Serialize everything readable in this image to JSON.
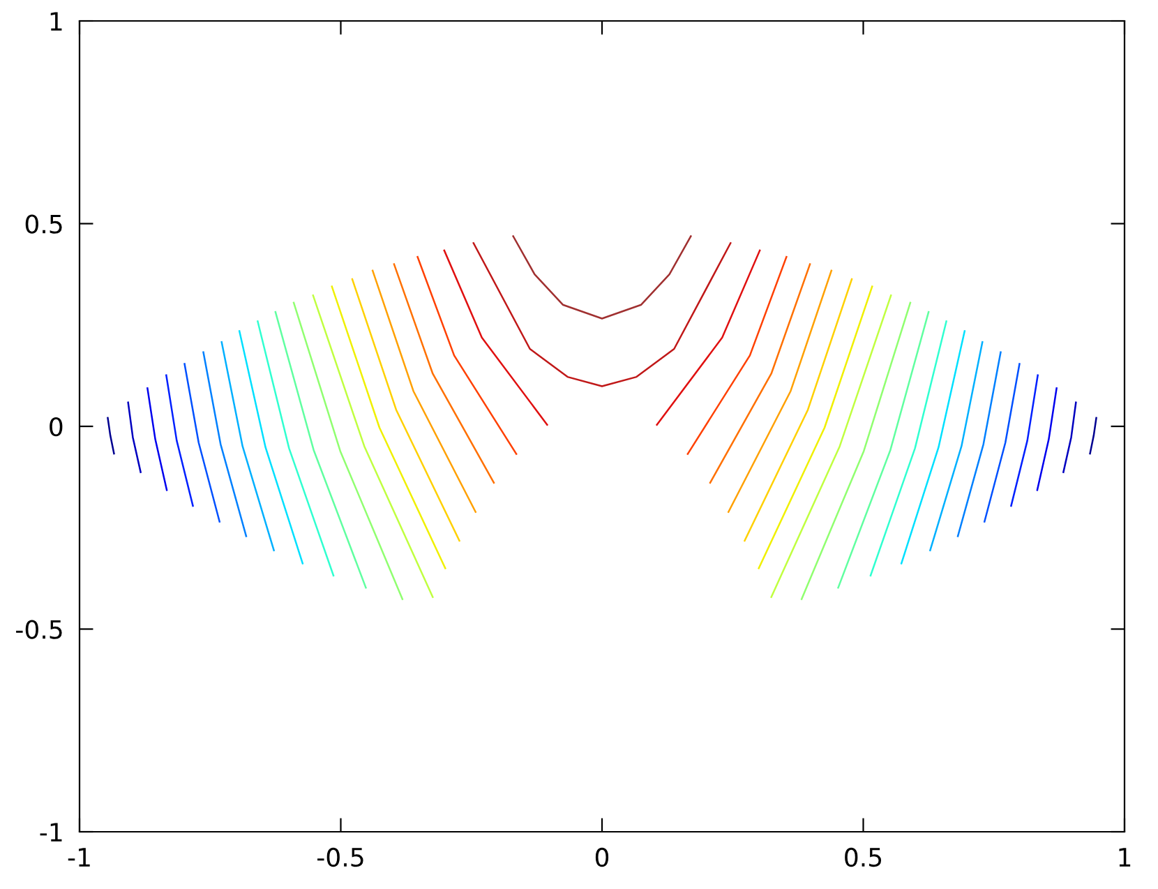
{
  "chart_data": {
    "type": "line",
    "xlim": [
      -1,
      1
    ],
    "ylim": [
      -1,
      1
    ],
    "xticks": [
      -1,
      -0.5,
      0,
      0.5,
      1
    ],
    "yticks": [
      -1,
      -0.5,
      0,
      0.5,
      1
    ],
    "grid": false,
    "marker": "none",
    "line_style": "solid",
    "series": [
      {
        "color": "#000090",
        "x": [
          -0.946,
          -0.941,
          -0.934
        ],
        "values": [
          0.021,
          -0.023,
          -0.067
        ]
      },
      {
        "color": "#000090",
        "x": [
          0.946,
          0.941,
          0.934
        ],
        "values": [
          0.021,
          -0.023,
          -0.067
        ]
      },
      {
        "color": "#0000c0",
        "x": [
          -0.907,
          -0.898,
          -0.883
        ],
        "values": [
          0.059,
          -0.027,
          -0.113
        ]
      },
      {
        "color": "#0000c0",
        "x": [
          0.907,
          0.898,
          0.883
        ],
        "values": [
          0.059,
          -0.027,
          -0.113
        ]
      },
      {
        "color": "#0000ee",
        "x": [
          -0.87,
          -0.855,
          -0.833
        ],
        "values": [
          0.094,
          -0.032,
          -0.157
        ]
      },
      {
        "color": "#0000ee",
        "x": [
          0.87,
          0.855,
          0.833
        ],
        "values": [
          0.094,
          -0.032,
          -0.157
        ]
      },
      {
        "color": "#0020ff",
        "x": [
          -0.834,
          -0.814,
          -0.783
        ],
        "values": [
          0.126,
          -0.035,
          -0.196
        ]
      },
      {
        "color": "#0020ff",
        "x": [
          0.834,
          0.814,
          0.783
        ],
        "values": [
          0.126,
          -0.035,
          -0.196
        ]
      },
      {
        "color": "#0050ff",
        "x": [
          -0.799,
          -0.772,
          -0.732
        ],
        "values": [
          0.154,
          -0.04,
          -0.235
        ]
      },
      {
        "color": "#0050ff",
        "x": [
          0.799,
          0.772,
          0.732
        ],
        "values": [
          0.154,
          -0.04,
          -0.235
        ]
      },
      {
        "color": "#0080ff",
        "x": [
          -0.763,
          -0.73,
          -0.681
        ],
        "values": [
          0.183,
          -0.044,
          -0.271
        ]
      },
      {
        "color": "#0080ff",
        "x": [
          0.763,
          0.73,
          0.681
        ],
        "values": [
          0.183,
          -0.044,
          -0.271
        ]
      },
      {
        "color": "#00b0ff",
        "x": [
          -0.728,
          -0.688,
          -0.628
        ],
        "values": [
          0.208,
          -0.049,
          -0.306
        ]
      },
      {
        "color": "#00b0ff",
        "x": [
          0.728,
          0.688,
          0.628
        ],
        "values": [
          0.208,
          -0.049,
          -0.306
        ]
      },
      {
        "color": "#00e0ff",
        "x": [
          -0.694,
          -0.644,
          -0.573
        ],
        "values": [
          0.235,
          -0.052,
          -0.338
        ]
      },
      {
        "color": "#00e0ff",
        "x": [
          0.694,
          0.644,
          0.573
        ],
        "values": [
          0.235,
          -0.052,
          -0.338
        ]
      },
      {
        "color": "#30ffd0",
        "x": [
          -0.659,
          -0.599,
          -0.514
        ],
        "values": [
          0.259,
          -0.054,
          -0.368
        ]
      },
      {
        "color": "#30ffd0",
        "x": [
          0.659,
          0.599,
          0.514
        ],
        "values": [
          0.259,
          -0.054,
          -0.368
        ]
      },
      {
        "color": "#60ffa0",
        "x": [
          -0.625,
          -0.552,
          -0.452
        ],
        "values": [
          0.282,
          -0.058,
          -0.398
        ]
      },
      {
        "color": "#60ffa0",
        "x": [
          0.625,
          0.552,
          0.452
        ],
        "values": [
          0.282,
          -0.058,
          -0.398
        ]
      },
      {
        "color": "#90ff70",
        "x": [
          -0.59,
          -0.501,
          -0.382
        ],
        "values": [
          0.305,
          -0.061,
          -0.426
        ]
      },
      {
        "color": "#90ff70",
        "x": [
          0.59,
          0.501,
          0.382
        ],
        "values": [
          0.305,
          -0.061,
          -0.426
        ]
      },
      {
        "color": "#c0ff40",
        "x": [
          -0.553,
          -0.455,
          -0.324
        ],
        "values": [
          0.323,
          -0.049,
          -0.421
        ]
      },
      {
        "color": "#c0ff40",
        "x": [
          0.553,
          0.455,
          0.324
        ],
        "values": [
          0.323,
          -0.049,
          -0.421
        ]
      },
      {
        "color": "#f0f000",
        "x": [
          -0.517,
          -0.426,
          -0.3
        ],
        "values": [
          0.345,
          -0.003,
          -0.35
        ]
      },
      {
        "color": "#f0f000",
        "x": [
          0.517,
          0.426,
          0.3
        ],
        "values": [
          0.345,
          -0.003,
          -0.35
        ]
      },
      {
        "color": "#ffd000",
        "x": [
          -0.478,
          -0.394,
          -0.273
        ],
        "values": [
          0.363,
          0.041,
          -0.282
        ]
      },
      {
        "color": "#ffd000",
        "x": [
          0.478,
          0.394,
          0.273
        ],
        "values": [
          0.363,
          0.041,
          -0.282
        ]
      },
      {
        "color": "#ffa000",
        "x": [
          -0.439,
          -0.361,
          -0.242
        ],
        "values": [
          0.384,
          0.087,
          -0.211
        ]
      },
      {
        "color": "#ffa000",
        "x": [
          0.439,
          0.361,
          0.242
        ],
        "values": [
          0.384,
          0.087,
          -0.211
        ]
      },
      {
        "color": "#ff7000",
        "x": [
          -0.398,
          -0.324,
          -0.207
        ],
        "values": [
          0.4,
          0.13,
          -0.139
        ]
      },
      {
        "color": "#ff7000",
        "x": [
          0.398,
          0.324,
          0.207
        ],
        "values": [
          0.4,
          0.13,
          -0.139
        ]
      },
      {
        "color": "#ff4000",
        "x": [
          -0.353,
          -0.283,
          -0.164
        ],
        "values": [
          0.418,
          0.175,
          -0.068
        ]
      },
      {
        "color": "#ff4000",
        "x": [
          0.353,
          0.283,
          0.164
        ],
        "values": [
          0.418,
          0.175,
          -0.068
        ]
      },
      {
        "color": "#e01010",
        "x": [
          -0.302,
          -0.23,
          -0.105
        ],
        "values": [
          0.434,
          0.219,
          0.004
        ]
      },
      {
        "color": "#e01010",
        "x": [
          0.302,
          0.23,
          0.105
        ],
        "values": [
          0.434,
          0.219,
          0.004
        ]
      },
      {
        "color": "#c01818",
        "x": [
          -0.246,
          -0.138,
          -0.066,
          0,
          0.066,
          0.138,
          0.246
        ],
        "values": [
          0.452,
          0.191,
          0.122,
          0.099,
          0.122,
          0.191,
          0.452
        ]
      },
      {
        "color": "#a03030",
        "x": [
          -0.17,
          -0.129,
          -0.075,
          0,
          0.075,
          0.129,
          0.17
        ],
        "values": [
          0.469,
          0.375,
          0.3,
          0.266,
          0.3,
          0.375,
          0.469
        ]
      }
    ]
  }
}
